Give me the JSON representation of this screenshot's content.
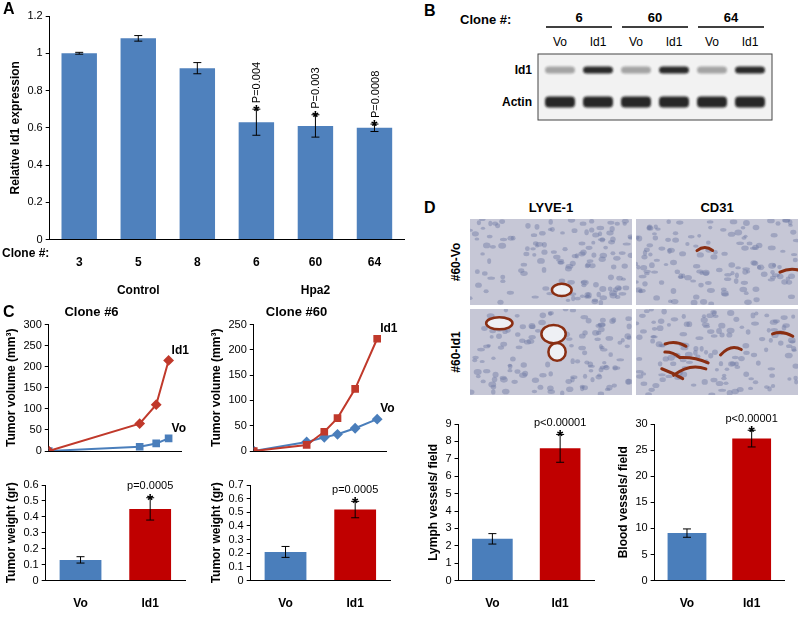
{
  "chart_data": [
    {
      "panel": "A",
      "type": "bar",
      "categories": [
        "3",
        "5",
        "8",
        "6",
        "60",
        "64"
      ],
      "values": [
        1.0,
        1.08,
        0.92,
        0.63,
        0.61,
        0.6
      ],
      "errors": [
        0.005,
        0.015,
        0.03,
        0.07,
        0.06,
        0.02
      ],
      "color": "#4f81bd",
      "x_label": "Clone #:",
      "y_label": "Relative Id1 expression",
      "groups": [
        {
          "name": "Control",
          "categories": [
            "3",
            "5",
            "8"
          ]
        },
        {
          "name": "Hpa2",
          "categories": [
            "6",
            "60",
            "64"
          ]
        }
      ],
      "annotations": [
        {
          "category": "6",
          "star": "*",
          "text": "P=0.004"
        },
        {
          "category": "60",
          "star": "*",
          "text": "P=0.003"
        },
        {
          "category": "64",
          "star": "*",
          "text": "P=0.0008"
        }
      ],
      "ylim": [
        0,
        1.2
      ],
      "yticks": [
        0,
        0.2,
        0.4,
        0.6,
        0.8,
        1,
        1.2
      ],
      "grid": false
    },
    {
      "panel": "C",
      "type": "line",
      "title": "Clone #6",
      "x": [
        0,
        22,
        26,
        29
      ],
      "series": [
        {
          "name": "Id1",
          "color": "#c0392b",
          "marker": "diamond",
          "line_style": "solid",
          "values": [
            0,
            65,
            110,
            215
          ]
        },
        {
          "name": "Vo",
          "color": "#4a7ebb",
          "marker": "square",
          "line_style": "solid",
          "values": [
            0,
            10,
            18,
            30
          ]
        }
      ],
      "y_label": "Tumor volume (mm³)",
      "xlim": [
        0,
        32
      ],
      "ylim": [
        0,
        300
      ],
      "yticks": [
        0,
        50,
        100,
        150,
        200,
        250,
        300
      ],
      "tick_labels": "y",
      "grid": false
    },
    {
      "type": "line",
      "title": "Clone #60",
      "x": [
        0,
        12,
        16,
        19,
        23,
        28
      ],
      "series": [
        {
          "name": "Id1",
          "color": "#c0392b",
          "marker": "square",
          "line_style": "solid",
          "values": [
            0,
            12,
            38,
            65,
            123,
            222
          ]
        },
        {
          "name": "Vo",
          "color": "#4a7ebb",
          "marker": "diamond",
          "line_style": "solid",
          "values": [
            0,
            18,
            27,
            33,
            45,
            63
          ]
        }
      ],
      "y_label": "Tumor volume (mm³)",
      "xlim": [
        0,
        30
      ],
      "ylim": [
        0,
        250
      ],
      "yticks": [
        0,
        50,
        100,
        150,
        200,
        250
      ],
      "tick_labels": "y",
      "grid": false
    },
    {
      "type": "bar",
      "categories": [
        "Vo",
        "Id1"
      ],
      "values": [
        0.13,
        0.45
      ],
      "errors": [
        0.02,
        0.07
      ],
      "colors": [
        "#4a7ebb",
        "#c00000"
      ],
      "y_label": "Tumor weight (gr)",
      "annotations": [
        {
          "category": "Id1",
          "star": "*",
          "text": "p=0.0005"
        }
      ],
      "ylim": [
        0,
        0.6
      ],
      "yticks": [
        0,
        0.1,
        0.2,
        0.3,
        0.4,
        0.5,
        0.6
      ],
      "grid": false
    },
    {
      "type": "bar",
      "categories": [
        "Vo",
        "Id1"
      ],
      "values": [
        0.21,
        0.52
      ],
      "errors": [
        0.04,
        0.06
      ],
      "colors": [
        "#4a7ebb",
        "#c00000"
      ],
      "y_label": "Tumor weight (gr)",
      "annotations": [
        {
          "category": "Id1",
          "star": "*",
          "text": "p=0.0005"
        }
      ],
      "ylim": [
        0,
        0.7
      ],
      "yticks": [
        0,
        0.1,
        0.2,
        0.3,
        0.4,
        0.5,
        0.6,
        0.7
      ],
      "grid": false
    },
    {
      "type": "bar",
      "categories": [
        "Vo",
        "Id1"
      ],
      "values": [
        2.4,
        7.6
      ],
      "errors": [
        0.3,
        0.8
      ],
      "colors": [
        "#4a7ebb",
        "#c00000"
      ],
      "y_label": "Lymph vessels/ field",
      "annotations": [
        {
          "category": "Id1",
          "star": "*",
          "text": "p<0.00001"
        }
      ],
      "ylim": [
        0,
        9
      ],
      "yticks": [
        0,
        1,
        2,
        3,
        4,
        5,
        6,
        7,
        8,
        9
      ],
      "grid": false
    },
    {
      "type": "bar",
      "categories": [
        "Vo",
        "Id1"
      ],
      "values": [
        9.1,
        27.2
      ],
      "errors": [
        0.8,
        1.6
      ],
      "colors": [
        "#4a7ebb",
        "#c00000"
      ],
      "y_label": "Blood vessels/ field",
      "annotations": [
        {
          "category": "Id1",
          "star": "*",
          "text": "p<0.00001"
        }
      ],
      "ylim": [
        0,
        30
      ],
      "yticks": [
        0,
        5,
        10,
        15,
        20,
        25,
        30
      ],
      "grid": false
    }
  ],
  "blot": {
    "panel": "B",
    "header": "Clone #:",
    "clones": [
      "6",
      "60",
      "64"
    ],
    "lanes": [
      "Vo",
      "Id1",
      "Vo",
      "Id1",
      "Vo",
      "Id1"
    ],
    "rows": [
      "Id1",
      "Actin"
    ]
  },
  "histology": {
    "panel": "D",
    "columns": [
      "LYVE-1",
      "CD31"
    ],
    "rows": [
      "#60-Vo",
      "#60-Id1"
    ]
  }
}
